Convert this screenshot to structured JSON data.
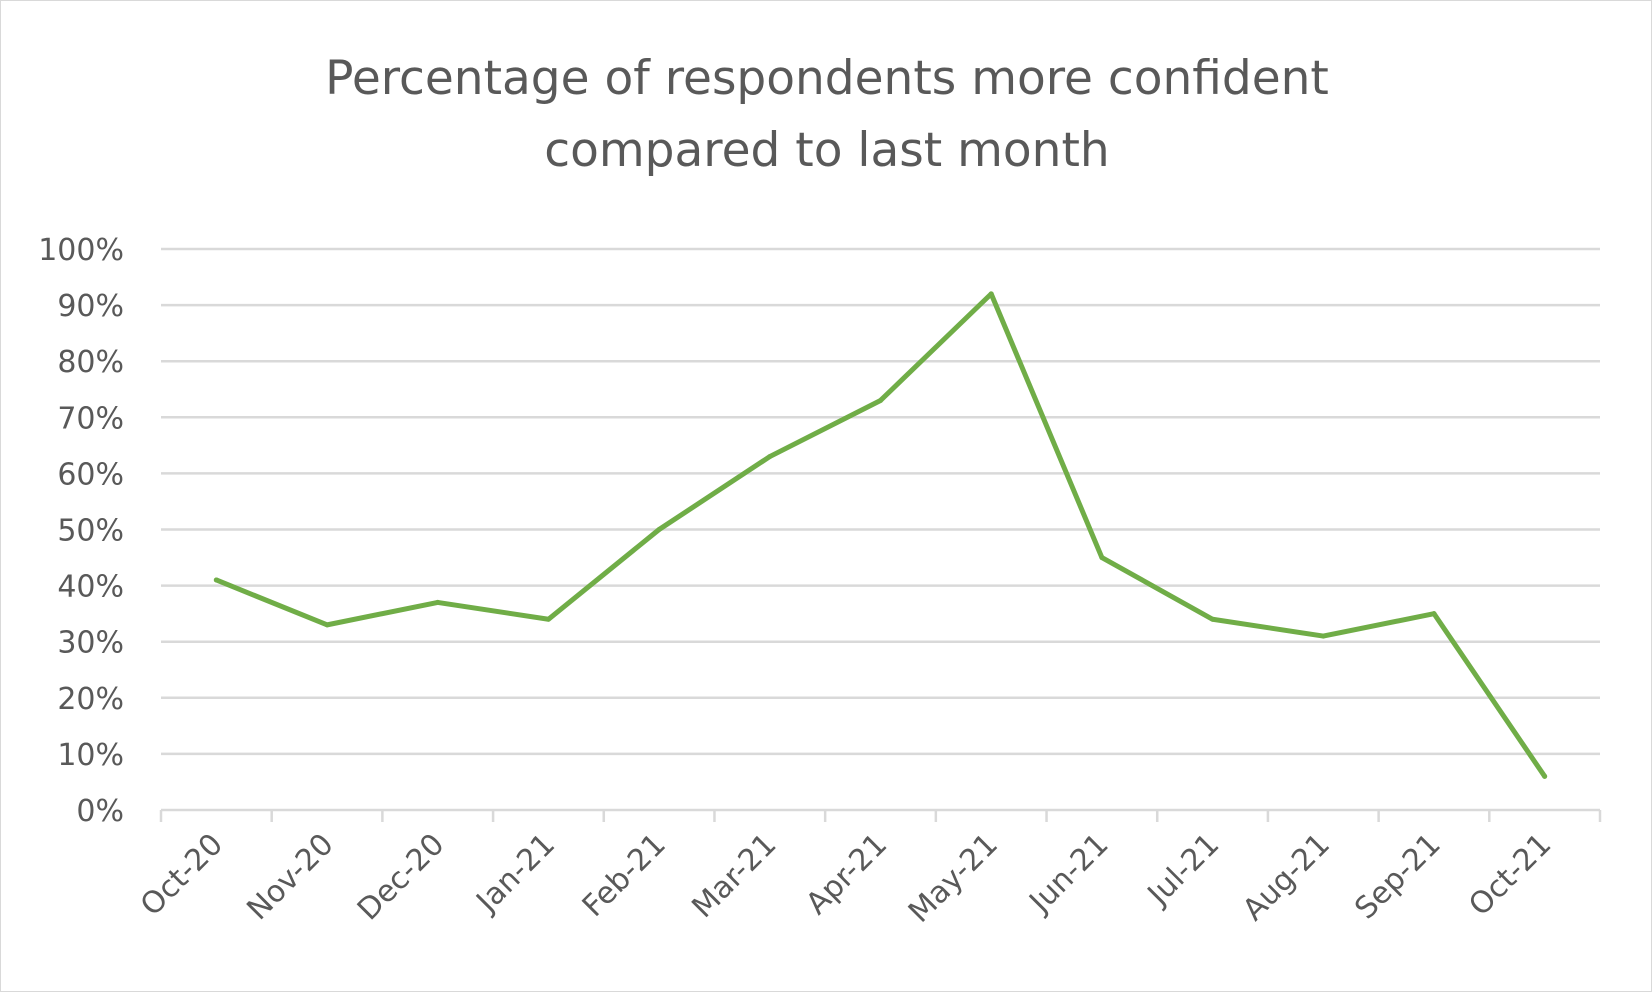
{
  "chart_data": {
    "type": "line",
    "title_lines": [
      "Percentage of respondents more confident",
      "compared to last month"
    ],
    "categories": [
      "Oct-20",
      "Nov-20",
      "Dec-20",
      "Jan-21",
      "Feb-21",
      "Mar-21",
      "Apr-21",
      "May-21",
      "Jun-21",
      "Jul-21",
      "Aug-21",
      "Sep-21",
      "Oct-21"
    ],
    "series": [
      {
        "values": [
          41,
          33,
          37,
          34,
          50,
          63,
          73,
          92,
          45,
          34,
          31,
          35,
          6
        ]
      }
    ],
    "ylim": [
      0,
      100
    ],
    "yticks": [
      "0%",
      "10%",
      "20%",
      "30%",
      "40%",
      "50%",
      "60%",
      "70%",
      "80%",
      "90%",
      "100%"
    ],
    "xlabel": "",
    "ylabel": "",
    "grid": true,
    "legend": "none",
    "colors": {
      "line": "#70ad47",
      "grid": "#d9d9d9",
      "axis": "#d9d9d9",
      "text": "#595959"
    }
  }
}
